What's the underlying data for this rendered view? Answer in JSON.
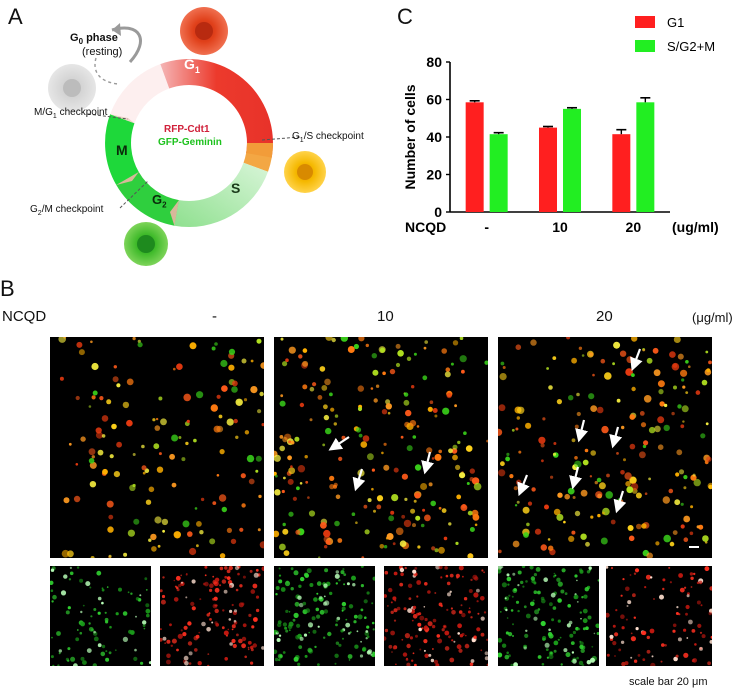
{
  "panels": {
    "a": "A",
    "b": "B",
    "c": "C"
  },
  "cycle": {
    "g0": "G",
    "g0_sub": "0",
    "g0_suffix": " phase",
    "resting": "(resting)",
    "g1": "G",
    "g1_sub": "1",
    "s": "S",
    "g2": "G",
    "g2_sub": "2",
    "m": "M",
    "rfp": "RFP-Cdt1",
    "gfp": "GFP-Geminin",
    "mg1": "M/G",
    "mg1_sub": "1",
    "mg1_suffix": " checkpoint",
    "g1s": "G",
    "g1s_sub": "1",
    "g1s_suffix": "/S checkpoint",
    "g2m": "G",
    "g2m_sub": "2",
    "g2m_suffix": "/M checkpoint",
    "colors": {
      "g1": "#e8322a",
      "s": "#9be39b",
      "g2": "#2ecc40",
      "m": "#19d43a",
      "g1s": "#f0a030"
    }
  },
  "chart_data": {
    "type": "bar",
    "categories": [
      "-",
      "10",
      "20"
    ],
    "series": [
      {
        "name": "G1",
        "values": [
          58.5,
          45.0,
          41.5
        ],
        "errors": [
          0.8,
          0.6,
          2.4
        ],
        "color": "#ff1f1f"
      },
      {
        "name": "S/G2+M",
        "values": [
          41.5,
          55.0,
          58.5
        ],
        "errors": [
          0.8,
          0.6,
          2.4
        ],
        "color": "#22ee22"
      }
    ],
    "ylabel": "Number of cells",
    "xlabel": "NCQD",
    "x_unit": "(ug/ml)",
    "ylim": [
      0,
      80
    ],
    "yticks": [
      "0",
      "20",
      "40",
      "60",
      "80"
    ],
    "legend_position": "top-right"
  },
  "microscopy": {
    "row_label": "NCQD",
    "unit": "(μg/ml)",
    "conditions": [
      "-",
      "10",
      "20"
    ],
    "scale_bar": "scale bar 20 μm"
  }
}
